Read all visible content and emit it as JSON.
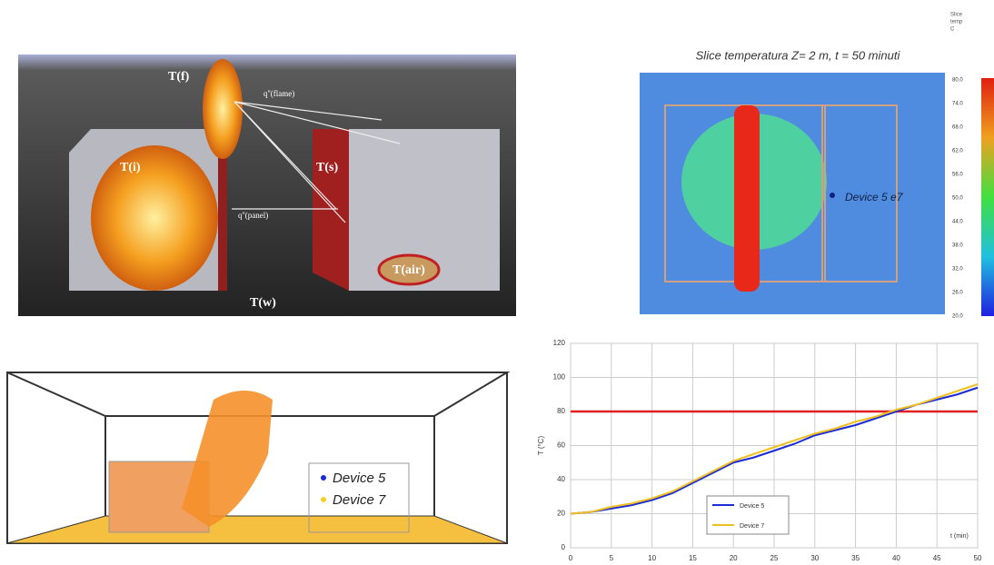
{
  "fire_model": {
    "labels": [
      "T(f)",
      "q''(flame)",
      "T(i)",
      "T(s)",
      "q''(panel)",
      "T(w)",
      "T(air)"
    ]
  },
  "slice": {
    "title": "Slice temperatura  Z= 2 m,  t = 50 minuti",
    "colorbar_header": [
      "Slice",
      "temp",
      "C"
    ],
    "colorbar_labels": [
      "80.0",
      "74.0",
      "68.0",
      "62.0",
      "56.0",
      "50.0",
      "44.0",
      "38.0",
      "32.0",
      "26.0",
      "20.0"
    ],
    "device_label": "Device 5 e7"
  },
  "render": {
    "legend": [
      {
        "name": "Device 5",
        "color": "#1a2bd6"
      },
      {
        "name": "Device 7",
        "color": "#f0d020"
      }
    ]
  },
  "chart_data": {
    "type": "line",
    "xlabel": "t (min)",
    "ylabel": "T (°C)",
    "x": [
      0,
      2.5,
      5,
      7.5,
      10,
      12.5,
      15,
      17.5,
      20,
      22.5,
      25,
      27.5,
      30,
      32.5,
      35,
      37.5,
      40,
      42.5,
      45,
      47.5,
      50
    ],
    "series": [
      {
        "name": "Device 5",
        "color": "#1a2bd6",
        "values": [
          20,
          21,
          23,
          25,
          28,
          32,
          38,
          44,
          50,
          53,
          57,
          61,
          66,
          69,
          72,
          76,
          80,
          84,
          87,
          90,
          94
        ]
      },
      {
        "name": "Device 7",
        "color": "#f0c020",
        "values": [
          20,
          21,
          24,
          26,
          29,
          33,
          39,
          45,
          51,
          55,
          59,
          63,
          67,
          70,
          74,
          77,
          81,
          84,
          88,
          92,
          96
        ]
      }
    ],
    "threshold": {
      "value": 80,
      "color": "#e02020"
    },
    "xlim": [
      0,
      50
    ],
    "ylim": [
      0,
      120
    ],
    "xticks": [
      0,
      5,
      10,
      15,
      20,
      25,
      30,
      35,
      40,
      45,
      50
    ],
    "yticks": [
      0,
      20,
      40,
      60,
      80,
      100,
      120
    ],
    "grid": true
  }
}
